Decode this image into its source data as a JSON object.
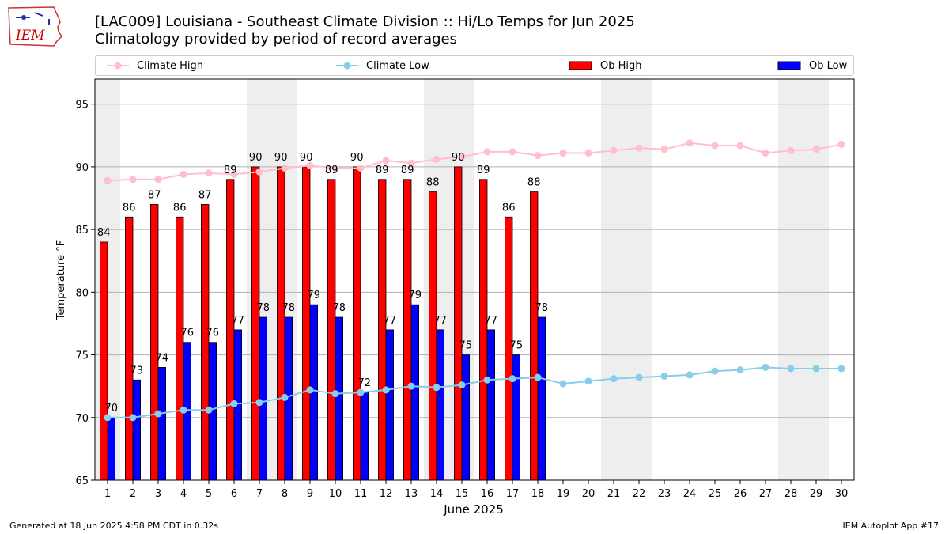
{
  "header": {
    "logo_text": "IEM",
    "title_line1": "[LAC009] Louisiana - Southeast Climate Division :: Hi/Lo Temps for Jun 2025",
    "title_line2": "Climatology provided by period of record averages"
  },
  "legend": {
    "climate_high": "Climate High",
    "climate_low": "Climate Low",
    "ob_high": "Ob High",
    "ob_low": "Ob Low"
  },
  "colors": {
    "climate_high": "#ffc0cb",
    "climate_low": "#87ceeb",
    "ob_high": "#ff0000",
    "ob_low": "#0000ff",
    "weekend_band": "#eeeeee",
    "grid": "#b0b0b0"
  },
  "footer": {
    "generated": "Generated at 18 Jun 2025 4:58 PM CDT in 0.32s",
    "app": "IEM Autoplot App #17"
  },
  "chart_data": {
    "type": "bar",
    "xlabel": "June 2025",
    "ylabel": "Temperature °F",
    "ylim": [
      65,
      97
    ],
    "xlim": [
      0.5,
      30.5
    ],
    "yticks": [
      65,
      70,
      75,
      80,
      85,
      90,
      95
    ],
    "grid": "horizontal",
    "legend_placement": "top",
    "days": [
      1,
      2,
      3,
      4,
      5,
      6,
      7,
      8,
      9,
      10,
      11,
      12,
      13,
      14,
      15,
      16,
      17,
      18,
      19,
      20,
      21,
      22,
      23,
      24,
      25,
      26,
      27,
      28,
      29,
      30
    ],
    "weekend_bands": [
      [
        0.5,
        1.5
      ],
      [
        6.5,
        8.5
      ],
      [
        13.5,
        15.5
      ],
      [
        20.5,
        22.5
      ],
      [
        27.5,
        29.5
      ]
    ],
    "series": [
      {
        "name": "Ob High",
        "kind": "bar",
        "values": [
          84,
          86,
          87,
          86,
          87,
          89,
          90,
          90,
          90,
          89,
          90,
          89,
          89,
          88,
          90,
          89,
          86,
          88
        ]
      },
      {
        "name": "Ob Low",
        "kind": "bar",
        "values": [
          70,
          73,
          74,
          76,
          76,
          77,
          78,
          78,
          79,
          78,
          72,
          77,
          79,
          77,
          75,
          77,
          75,
          78
        ]
      },
      {
        "name": "Climate High",
        "kind": "line",
        "values": [
          88.9,
          89.0,
          89.0,
          89.4,
          89.5,
          89.4,
          89.6,
          89.9,
          90.1,
          89.9,
          89.9,
          90.5,
          90.3,
          90.6,
          90.8,
          91.2,
          91.2,
          90.9,
          91.1,
          91.1,
          91.3,
          91.5,
          91.4,
          91.9,
          91.7,
          91.7,
          91.1,
          91.3,
          91.4,
          91.8
        ]
      },
      {
        "name": "Climate Low",
        "kind": "line",
        "values": [
          70.0,
          70.0,
          70.3,
          70.6,
          70.6,
          71.1,
          71.2,
          71.6,
          72.2,
          71.9,
          72.0,
          72.2,
          72.5,
          72.4,
          72.6,
          73.0,
          73.1,
          73.2,
          72.7,
          72.9,
          73.1,
          73.2,
          73.3,
          73.4,
          73.7,
          73.8,
          74.0,
          73.9,
          73.9,
          73.9
        ]
      }
    ]
  }
}
